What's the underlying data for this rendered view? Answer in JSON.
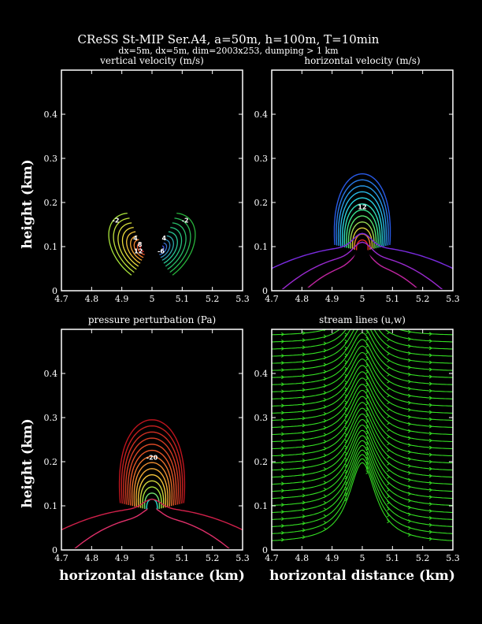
{
  "figure": {
    "title": "CReSS St-MIP Ser.A4, a=50m, h=100m, T=10min",
    "subtitle": "dx=5m, dx=5m, dim=2003x253, dumping > 1 km"
  },
  "chart_data": [
    {
      "type": "contour",
      "title": "vertical velocity (m/s)",
      "xlabel": "",
      "ylabel": "height (km)",
      "xlim": [
        4.7,
        5.3
      ],
      "ylim": [
        0,
        0.5
      ],
      "xticks": [
        "4.7",
        "4.8",
        "4.9",
        "5",
        "5.1",
        "5.2",
        "5.3"
      ],
      "yticks": [
        "0",
        "0.1",
        "0.2",
        "0.3",
        "0.4"
      ],
      "contour_labels": [
        "-2",
        "-2",
        "4",
        "8",
        "4",
        "12",
        "-6"
      ]
    },
    {
      "type": "contour",
      "title": "horizontal velocity (m/s)",
      "xlabel": "",
      "ylabel": "",
      "xlim": [
        4.7,
        5.3
      ],
      "ylim": [
        0,
        0.5
      ],
      "xticks": [
        "4.7",
        "4.8",
        "4.9",
        "5",
        "5.1",
        "5.2",
        "5.3"
      ],
      "yticks": [
        "0",
        "0.1",
        "0.2",
        "0.3",
        "0.4"
      ],
      "contour_labels": [
        "12"
      ]
    },
    {
      "type": "contour",
      "title": "pressure perturbation (Pa)",
      "xlabel": "horizontal distance (km)",
      "ylabel": "height (km)",
      "xlim": [
        4.7,
        5.3
      ],
      "ylim": [
        0,
        0.5
      ],
      "xticks": [
        "4.7",
        "4.8",
        "4.9",
        "5",
        "5.1",
        "5.2",
        "5.3"
      ],
      "yticks": [
        "0",
        "0.1",
        "0.2",
        "0.3",
        "0.4"
      ],
      "contour_labels": [
        "-20"
      ]
    },
    {
      "type": "streamlines",
      "title": "stream lines (u,w)",
      "xlabel": "horizontal distance (km)",
      "ylabel": "",
      "xlim": [
        4.7,
        5.3
      ],
      "ylim": [
        0,
        0.5
      ],
      "xticks": [
        "4.7",
        "4.8",
        "4.9",
        "5",
        "5.1",
        "5.2",
        "5.3"
      ],
      "yticks": [
        "0",
        "0.1",
        "0.2",
        "0.3",
        "0.4"
      ],
      "line_color": "#33dd22"
    }
  ],
  "colors": {
    "background": "#000000",
    "frame": "#ffffff",
    "mountain": "#000000"
  }
}
